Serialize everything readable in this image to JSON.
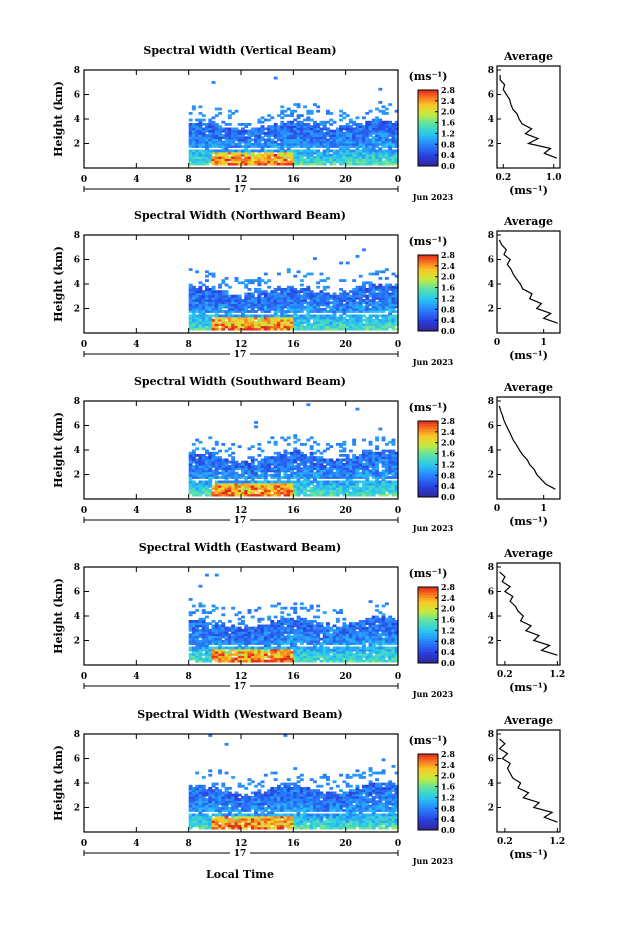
{
  "figure": {
    "xlabel": "Local Time",
    "date_label": "Jun 2023",
    "day_label": "17",
    "avg_title": "Average",
    "ylabel": "Height (km)",
    "unit": "(ms⁻¹)"
  },
  "chart_data": [
    {
      "type": "heatmap",
      "title": "Spectral Width (Vertical Beam)",
      "x_range": [
        0,
        24
      ],
      "x_ticks": [
        "0",
        "4",
        "8",
        "12",
        "16",
        "20",
        "0"
      ],
      "y_range": [
        0,
        8
      ],
      "y_ticks": [
        "2",
        "4",
        "6",
        "8"
      ],
      "data_start_hour": 8,
      "colorbar": {
        "min": 0.0,
        "max": 2.8,
        "ticks": [
          "2.8",
          "2.4",
          "2.0",
          "1.6",
          "1.2",
          "0.8",
          "0.4",
          "0.0"
        ]
      },
      "average_profile": {
        "title": "Average",
        "x_ticks": [
          "0.2",
          "1.0"
        ],
        "x_range": [
          0.1,
          1.1
        ],
        "heights": [
          0.8,
          1.2,
          1.6,
          2.0,
          2.4,
          2.8,
          3.2,
          3.6,
          4.0,
          4.4,
          4.8,
          5.2,
          5.6,
          6.0,
          6.4,
          6.8,
          7.2,
          7.6
        ],
        "values": [
          1.05,
          0.85,
          0.95,
          0.6,
          0.75,
          0.55,
          0.65,
          0.5,
          0.45,
          0.42,
          0.35,
          0.32,
          0.3,
          0.25,
          0.2,
          0.22,
          0.15,
          0.15
        ]
      }
    },
    {
      "type": "heatmap",
      "title": "Spectral Width (Northward Beam)",
      "x_range": [
        0,
        24
      ],
      "x_ticks": [
        "0",
        "4",
        "8",
        "12",
        "16",
        "20",
        "0"
      ],
      "y_range": [
        0,
        8
      ],
      "y_ticks": [
        "2",
        "4",
        "6",
        "8"
      ],
      "data_start_hour": 8,
      "colorbar": {
        "min": 0.0,
        "max": 2.8,
        "ticks": [
          "2.8",
          "2.4",
          "2.0",
          "1.6",
          "1.2",
          "0.8",
          "0.4",
          "0.0"
        ]
      },
      "average_profile": {
        "title": "Average",
        "x_ticks": [
          "0",
          "1"
        ],
        "x_range": [
          0,
          1.35
        ],
        "heights": [
          0.8,
          1.2,
          1.6,
          2.0,
          2.4,
          2.8,
          3.2,
          3.6,
          4.0,
          4.4,
          4.8,
          5.2,
          5.6,
          6.0,
          6.4,
          6.8,
          7.2,
          7.6
        ],
        "values": [
          1.3,
          1.0,
          1.15,
          0.85,
          0.95,
          0.7,
          0.75,
          0.55,
          0.5,
          0.42,
          0.35,
          0.3,
          0.22,
          0.28,
          0.15,
          0.2,
          0.1,
          0.05
        ]
      }
    },
    {
      "type": "heatmap",
      "title": "Spectral Width (Southward Beam)",
      "x_range": [
        0,
        24
      ],
      "x_ticks": [
        "0",
        "4",
        "8",
        "12",
        "16",
        "20",
        "0"
      ],
      "y_range": [
        0,
        8
      ],
      "y_ticks": [
        "2",
        "4",
        "6",
        "8"
      ],
      "data_start_hour": 8,
      "colorbar": {
        "min": 0.0,
        "max": 2.8,
        "ticks": [
          "2.8",
          "2.4",
          "2.0",
          "1.6",
          "1.2",
          "0.8",
          "0.4",
          "0.0"
        ]
      },
      "average_profile": {
        "title": "Average",
        "x_ticks": [
          "0",
          "1"
        ],
        "x_range": [
          0,
          1.35
        ],
        "heights": [
          0.8,
          1.2,
          1.6,
          2.0,
          2.4,
          2.8,
          3.2,
          3.6,
          4.0,
          4.4,
          4.8,
          5.2,
          5.6,
          6.0,
          6.4,
          6.8,
          7.2,
          7.6
        ],
        "values": [
          1.25,
          1.05,
          0.95,
          0.85,
          0.8,
          0.7,
          0.65,
          0.55,
          0.48,
          0.42,
          0.35,
          0.3,
          0.25,
          0.2,
          0.15,
          0.12,
          0.08,
          0.05
        ]
      }
    },
    {
      "type": "heatmap",
      "title": "Spectral Width (Eastward Beam)",
      "x_range": [
        0,
        24
      ],
      "x_ticks": [
        "0",
        "4",
        "8",
        "12",
        "16",
        "20",
        "0"
      ],
      "y_range": [
        0,
        8
      ],
      "y_ticks": [
        "2",
        "4",
        "6",
        "8"
      ],
      "data_start_hour": 8,
      "colorbar": {
        "min": 0.0,
        "max": 2.8,
        "ticks": [
          "2.8",
          "2.4",
          "2.0",
          "1.6",
          "1.2",
          "0.8",
          "0.4",
          "0.0"
        ]
      },
      "average_profile": {
        "title": "Average",
        "x_ticks": [
          "0.2",
          "1.2"
        ],
        "x_range": [
          0.05,
          1.25
        ],
        "heights": [
          0.8,
          1.2,
          1.6,
          2.0,
          2.4,
          2.8,
          3.2,
          3.6,
          4.0,
          4.4,
          4.8,
          5.2,
          5.6,
          6.0,
          6.4,
          6.8,
          7.2,
          7.6
        ],
        "values": [
          1.2,
          0.9,
          1.05,
          0.75,
          0.85,
          0.6,
          0.7,
          0.5,
          0.55,
          0.45,
          0.4,
          0.3,
          0.35,
          0.2,
          0.3,
          0.15,
          0.2,
          0.1
        ]
      }
    },
    {
      "type": "heatmap",
      "title": "Spectral Width (Westward Beam)",
      "x_range": [
        0,
        24
      ],
      "x_ticks": [
        "0",
        "4",
        "8",
        "12",
        "16",
        "20",
        "0"
      ],
      "y_range": [
        0,
        8
      ],
      "y_ticks": [
        "2",
        "4",
        "6",
        "8"
      ],
      "data_start_hour": 8,
      "colorbar": {
        "min": 0.0,
        "max": 2.8,
        "ticks": [
          "2.8",
          "2.4",
          "2.0",
          "1.6",
          "1.2",
          "0.8",
          "0.4",
          "0.0"
        ]
      },
      "average_profile": {
        "title": "Average",
        "x_ticks": [
          "0.2",
          "1.2"
        ],
        "x_range": [
          0.05,
          1.25
        ],
        "heights": [
          0.8,
          1.2,
          1.6,
          2.0,
          2.4,
          2.8,
          3.2,
          3.6,
          4.0,
          4.4,
          4.8,
          5.2,
          5.6,
          6.0,
          6.4,
          6.8,
          7.2,
          7.6
        ],
        "values": [
          1.2,
          0.95,
          1.1,
          0.75,
          0.85,
          0.55,
          0.65,
          0.45,
          0.5,
          0.35,
          0.3,
          0.25,
          0.3,
          0.15,
          0.25,
          0.1,
          0.2,
          0.1
        ]
      }
    }
  ]
}
